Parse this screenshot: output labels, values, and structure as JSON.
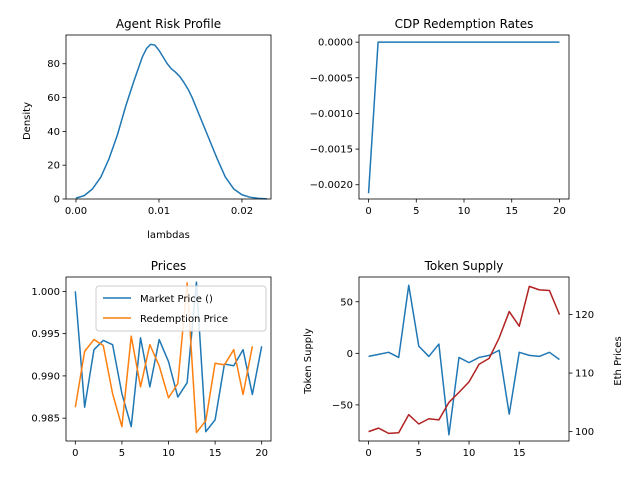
{
  "colors": {
    "blue": "#1f77b4",
    "orange": "#ff7f0e",
    "red": "#b22222"
  },
  "chart_data": [
    {
      "type": "line",
      "title": "Agent Risk Profile",
      "xlabel": "lambdas",
      "ylabel": "Density",
      "xlim": [
        -0.0012,
        0.0235
      ],
      "ylim": [
        0,
        97
      ],
      "xticks": [
        0.0,
        0.01,
        0.02
      ],
      "xtick_labels": [
        "0.00",
        "0.01",
        "0.02"
      ],
      "yticks": [
        0,
        20,
        40,
        60,
        80
      ],
      "yticklabels": [
        "0",
        "20",
        "40",
        "60",
        "80"
      ],
      "series": [
        {
          "color": "#1f77b4",
          "x": [
            0.0,
            0.001,
            0.002,
            0.003,
            0.004,
            0.005,
            0.006,
            0.007,
            0.0075,
            0.008,
            0.0085,
            0.009,
            0.0095,
            0.01,
            0.0105,
            0.011,
            0.0115,
            0.012,
            0.0125,
            0.013,
            0.0135,
            0.014,
            0.0145,
            0.015,
            0.016,
            0.017,
            0.018,
            0.019,
            0.02,
            0.021,
            0.022,
            0.023
          ],
          "y": [
            0.5,
            2,
            6,
            13,
            24,
            38,
            55,
            70,
            77,
            84,
            89,
            91.5,
            91,
            88,
            84,
            80,
            77,
            75,
            72.5,
            69,
            65,
            60,
            54,
            48,
            36,
            24,
            13,
            6,
            2.5,
            1,
            0.4,
            0.1
          ]
        }
      ]
    },
    {
      "type": "line",
      "title": "CDP Redemption Rates",
      "xlim": [
        -1,
        21
      ],
      "ylim": [
        -0.0022,
        0.0001
      ],
      "xticks": [
        0,
        5,
        10,
        15,
        20
      ],
      "xtick_labels": [
        "0",
        "5",
        "10",
        "15",
        "20"
      ],
      "yticks": [
        0.0,
        -0.0005,
        -0.001,
        -0.0015,
        -0.002
      ],
      "yticklabels": [
        "0.0000",
        "−0.0005",
        "−0.0010",
        "−0.0015",
        "−0.0020"
      ],
      "series": [
        {
          "color": "#1f77b4",
          "x": [
            0,
            1,
            2,
            3,
            4,
            5,
            6,
            7,
            8,
            9,
            10,
            11,
            12,
            13,
            14,
            15,
            16,
            17,
            18,
            19,
            20
          ],
          "y": [
            -0.00212,
            0,
            0,
            0,
            0,
            0,
            0,
            0,
            0,
            0,
            0,
            0,
            0,
            0,
            0,
            0,
            0,
            0,
            0,
            0,
            0
          ]
        }
      ]
    },
    {
      "type": "line",
      "title": "Prices",
      "xlim": [
        -1,
        21
      ],
      "ylim": [
        0.9823,
        1.0017
      ],
      "xticks": [
        0,
        5,
        10,
        15,
        20
      ],
      "xtick_labels": [
        "0",
        "5",
        "10",
        "15",
        "20"
      ],
      "yticks": [
        0.985,
        0.99,
        0.995,
        1.0
      ],
      "yticklabels": [
        "0.985",
        "0.990",
        "0.995",
        "1.000"
      ],
      "legend": "top-right",
      "series": [
        {
          "name": "Market Price ()",
          "color": "#1f77b4",
          "x": [
            0,
            1,
            2,
            3,
            4,
            5,
            6,
            7,
            8,
            9,
            10,
            11,
            12,
            13,
            14,
            15,
            16,
            17,
            18,
            19,
            20
          ],
          "y": [
            1.0,
            0.9863,
            0.9931,
            0.9942,
            0.9937,
            0.9879,
            0.984,
            0.9945,
            0.9887,
            0.9943,
            0.9917,
            0.9875,
            0.9892,
            1.0011,
            0.9834,
            0.9848,
            0.9914,
            0.9912,
            0.9931,
            0.9878,
            0.9935
          ]
        },
        {
          "name": "Redemption Price",
          "color": "#ff7f0e",
          "x": [
            0,
            1,
            2,
            3,
            4,
            5,
            6,
            7,
            8,
            9,
            10,
            11,
            12,
            13,
            14,
            15,
            16,
            17,
            18,
            19
          ],
          "y": [
            0.9863,
            0.9929,
            0.9943,
            0.9936,
            0.9879,
            0.984,
            0.9947,
            0.9887,
            0.9937,
            0.9912,
            0.9874,
            0.9891,
            1.001,
            0.9833,
            0.9847,
            0.9915,
            0.9913,
            0.9931,
            0.9878,
            0.9935
          ]
        }
      ]
    },
    {
      "type": "line",
      "title": "Token Supply",
      "ylabel": "Token Supply",
      "ylabel_right": "Eth Prices",
      "xlim": [
        -0.95,
        19.95
      ],
      "ylim": [
        -85,
        74
      ],
      "ylim_right": [
        98.4,
        126.4
      ],
      "xticks": [
        0,
        5,
        10,
        15
      ],
      "xtick_labels": [
        "0",
        "5",
        "10",
        "15"
      ],
      "yticks": [
        50,
        0,
        -50
      ],
      "yticklabels": [
        "50",
        "0",
        "−50"
      ],
      "yticks_right": [
        100,
        110,
        120
      ],
      "yticklabels_right": [
        "100",
        "110",
        "120"
      ],
      "series": [
        {
          "name": "Token Supply",
          "axis": "left",
          "color": "#1f77b4",
          "x": [
            0,
            1,
            2,
            3,
            4,
            5,
            6,
            7,
            8,
            9,
            10,
            11,
            12,
            13,
            14,
            15,
            16,
            17,
            18,
            19
          ],
          "y": [
            -3,
            -1,
            1,
            -4,
            66,
            7,
            -3,
            9,
            -79,
            -4,
            -9,
            -4,
            -2,
            3,
            -59,
            1,
            -2,
            -3,
            1,
            -6
          ]
        },
        {
          "name": "Eth Prices",
          "axis": "right",
          "color": "#b22222",
          "x": [
            0,
            1,
            2,
            3,
            4,
            5,
            6,
            7,
            8,
            9,
            10,
            11,
            12,
            13,
            14,
            15,
            16,
            17,
            18,
            19
          ],
          "y": [
            100,
            100.6,
            99.7,
            99.8,
            102.9,
            101.3,
            102.2,
            102,
            105,
            106.7,
            108.5,
            111.5,
            112.5,
            116,
            120.5,
            118,
            124.8,
            124.2,
            124.1,
            120
          ]
        }
      ]
    }
  ]
}
